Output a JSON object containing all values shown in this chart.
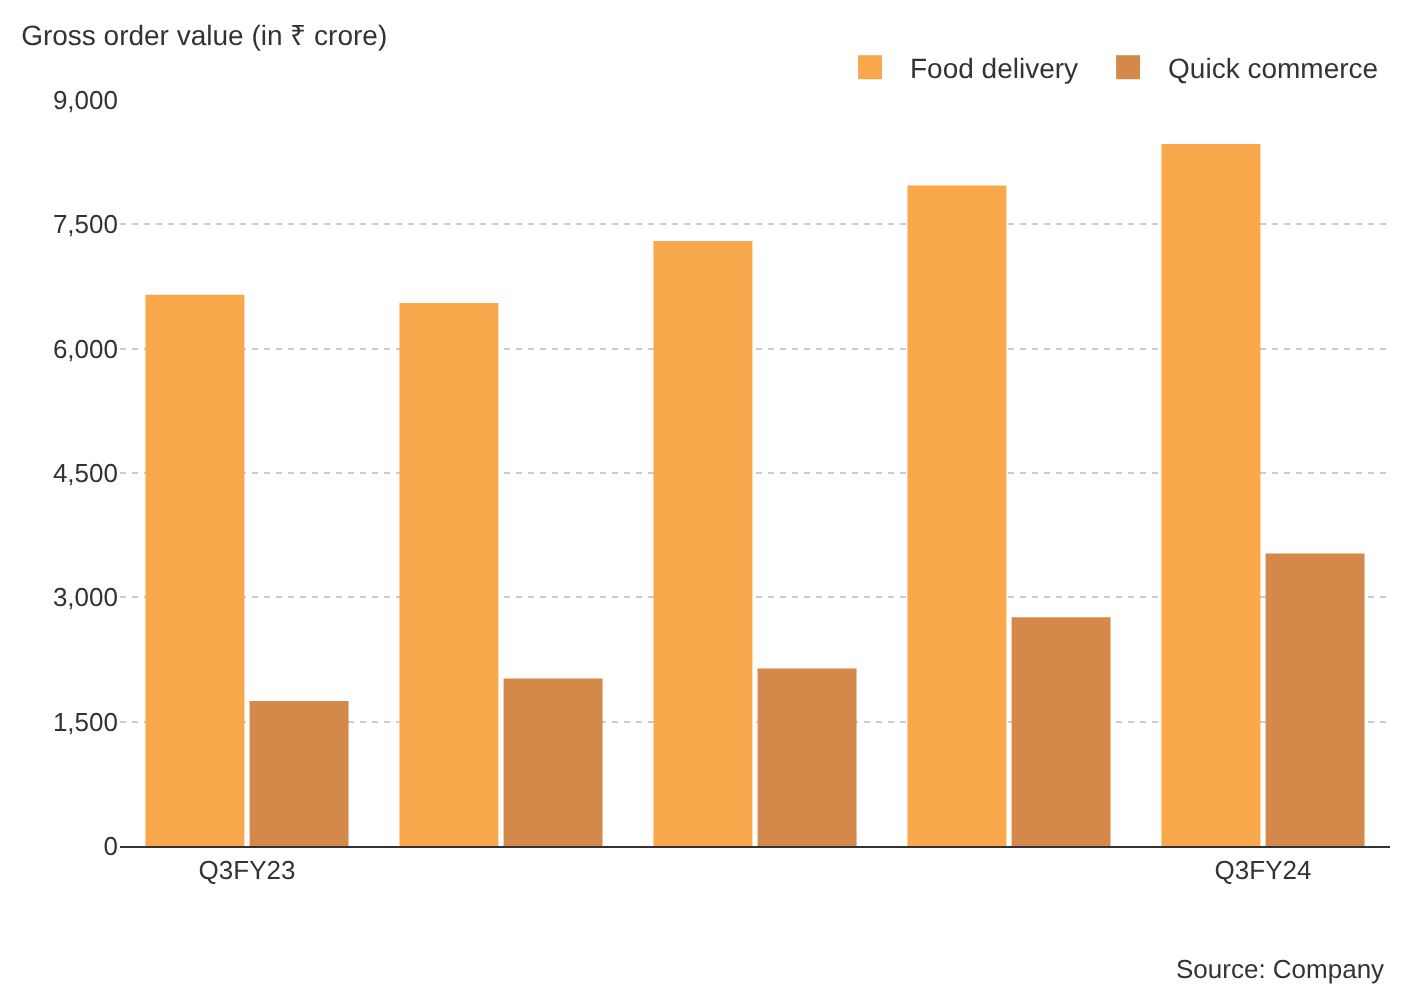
{
  "chart_data": {
    "type": "bar",
    "title": "Gross order value (in ₹ crore)",
    "categories": [
      "Q3FY23",
      null,
      null,
      null,
      "Q3FY24"
    ],
    "series": [
      {
        "name": "Food delivery",
        "color": "#f9a94b",
        "values": [
          6650,
          6550,
          7300,
          7970,
          8470
        ]
      },
      {
        "name": "Quick commerce",
        "color": "#d4884a",
        "values": [
          1750,
          2020,
          2140,
          2760,
          3530
        ]
      }
    ],
    "ylim": [
      0,
      9000
    ],
    "yticks": [
      0,
      {
        "value": 1500,
        "label": "1,500"
      },
      {
        "value": 3000,
        "label": "3,000"
      },
      {
        "value": 4500,
        "label": "4,500"
      },
      {
        "value": 6000,
        "label": "6,000"
      },
      {
        "value": 7500,
        "label": "7,500"
      },
      {
        "value": 9000,
        "label": "9,000"
      }
    ],
    "grid": "y",
    "legend": "top right",
    "annotations": [
      "Source: Company"
    ]
  }
}
